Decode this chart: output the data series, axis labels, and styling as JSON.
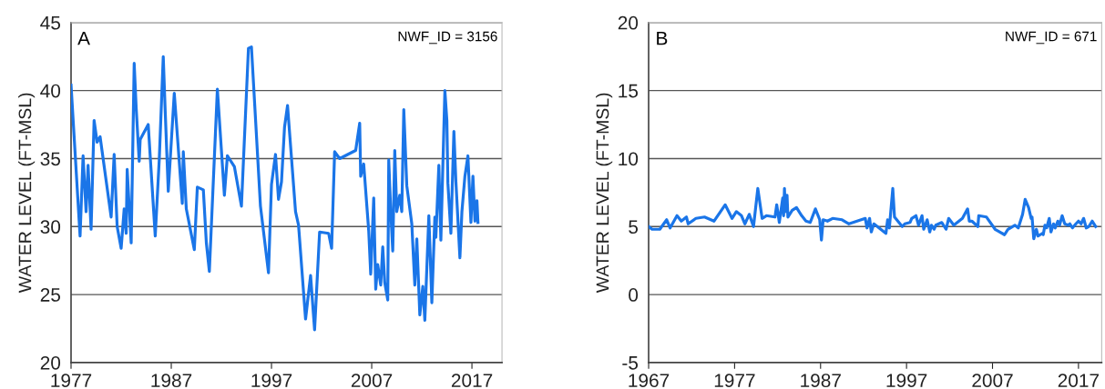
{
  "chart_data": [
    {
      "type": "line",
      "ylabel": "WATER LEVEL (FT-MSL)",
      "annotations": [
        "A",
        "NWF_ID = 3156"
      ],
      "xlim": [
        1977,
        2020
      ],
      "xticks": [
        1977,
        1987,
        1997,
        2007,
        2017
      ],
      "ylim": [
        20,
        45
      ],
      "yticks": [
        20,
        25,
        30,
        35,
        40,
        45
      ],
      "grid": "y",
      "series": [
        {
          "color": "#1a75e8",
          "x": [
            1977.0,
            1977.9,
            1978.2,
            1978.5,
            1978.7,
            1979.0,
            1979.3,
            1979.6,
            1979.9,
            1981.0,
            1981.3,
            1981.6,
            1982.0,
            1982.3,
            1982.5,
            1982.6,
            1983.0,
            1983.3,
            1983.5,
            1983.8,
            1983.9,
            1984.7,
            1985.4,
            1985.8,
            1986.2,
            1986.4,
            1986.7,
            1987.0,
            1987.3,
            1988.1,
            1988.2,
            1988.5,
            1989.3,
            1989.6,
            1990.2,
            1990.5,
            1990.8,
            1991.6,
            1992.3,
            1992.6,
            1993.3,
            1994.0,
            1994.7,
            1995.0,
            1995.9,
            1996.7,
            1997.0,
            1997.4,
            1997.7,
            1998.0,
            1998.3,
            1998.6,
            1999.4,
            1999.7,
            2000.4,
            2000.9,
            2001.3,
            2001.8,
            2002.7,
            2003.0,
            2003.3,
            2003.8,
            2005.4,
            2005.8,
            2005.9,
            2006.2,
            2006.7,
            2006.9,
            2007.2,
            2007.4,
            2007.6,
            2007.9,
            2008.1,
            2008.3,
            2008.6,
            2008.7,
            2008.9,
            2009.1,
            2009.3,
            2009.5,
            2009.8,
            2010.0,
            2010.2,
            2010.5,
            2011.0,
            2011.3,
            2011.5,
            2011.8,
            2012.1,
            2012.3,
            2012.7,
            2013.0,
            2013.3,
            2013.4,
            2013.7,
            2013.9,
            2014.3,
            2014.5,
            2014.6,
            2014.9,
            2015.2,
            2015.4,
            2015.8,
            2016.0,
            2016.3,
            2016.6,
            2016.9,
            2017.1,
            2017.3,
            2017.5,
            2017.6
          ],
          "values": [
            40.4,
            29.3,
            35.2,
            31.1,
            34.5,
            29.8,
            37.8,
            36.2,
            36.6,
            30.7,
            35.3,
            30.0,
            28.4,
            31.3,
            29.5,
            34.2,
            28.8,
            42.0,
            38.7,
            34.8,
            36.4,
            37.5,
            29.3,
            34.9,
            42.5,
            38.4,
            32.6,
            36.2,
            39.8,
            31.7,
            35.5,
            31.3,
            28.3,
            32.9,
            32.7,
            28.8,
            26.7,
            40.1,
            32.3,
            35.2,
            34.4,
            31.5,
            43.1,
            43.2,
            31.5,
            26.6,
            33.1,
            35.3,
            32.0,
            33.3,
            37.3,
            38.9,
            31.1,
            30.1,
            23.2,
            26.4,
            22.4,
            29.6,
            29.5,
            28.4,
            35.5,
            35.0,
            35.6,
            37.6,
            33.7,
            34.6,
            29.7,
            26.5,
            32.1,
            25.4,
            27.2,
            25.7,
            28.5,
            25.9,
            24.6,
            34.9,
            31.1,
            28.2,
            35.6,
            31.1,
            32.3,
            31.1,
            38.6,
            33.0,
            30.2,
            25.7,
            29.1,
            23.5,
            25.6,
            23.1,
            30.8,
            24.4,
            30.7,
            29.2,
            34.5,
            29.0,
            40.0,
            37.8,
            33.2,
            29.5,
            37.0,
            33.3,
            27.7,
            31.1,
            33.7,
            35.2,
            30.3,
            33.7,
            30.4,
            31.9,
            30.3
          ]
        }
      ]
    },
    {
      "type": "line",
      "ylabel": "WATER LEVEL (FT-MSL)",
      "annotations": [
        "B",
        "NWF_ID = 671"
      ],
      "xlim": [
        1967,
        2019.7
      ],
      "xticks": [
        1967,
        1977,
        1987,
        1997,
        2007,
        2017
      ],
      "ylim": [
        -5,
        20
      ],
      "yticks": [
        -5,
        0,
        5,
        10,
        15,
        20
      ],
      "grid": "y",
      "series": [
        {
          "color": "#1a75e8",
          "x": [
            1967.0,
            1967.4,
            1968.3,
            1969.1,
            1969.5,
            1970.3,
            1970.8,
            1971.4,
            1971.6,
            1972.5,
            1973.5,
            1974.6,
            1975.9,
            1976.7,
            1977.2,
            1977.8,
            1978.2,
            1978.7,
            1979.2,
            1979.7,
            1980.2,
            1980.7,
            1981.7,
            1981.9,
            1982.2,
            1982.6,
            1982.7,
            1982.8,
            1982.9,
            1983.1,
            1983.2,
            1983.7,
            1984.2,
            1984.8,
            1985.3,
            1985.8,
            1986.4,
            1986.9,
            1987.1,
            1987.3,
            1987.8,
            1988.4,
            1989.5,
            1990.3,
            1992.2,
            1992.4,
            1992.7,
            1992.9,
            1993.2,
            1994.6,
            1994.8,
            1995.0,
            1995.4,
            1995.6,
            1996.5,
            1996.8,
            1997.4,
            1997.6,
            1998.1,
            1998.4,
            1998.8,
            1999.0,
            1999.4,
            1999.7,
            1999.9,
            2000.2,
            2000.4,
            2001.1,
            2001.6,
            2001.9,
            2002.5,
            2003.5,
            2004.1,
            2004.3,
            2004.6,
            2005.3,
            2005.4,
            2006.3,
            2007.3,
            2008.4,
            2008.8,
            2009.6,
            2010.0,
            2010.5,
            2010.8,
            2011.2,
            2011.5,
            2011.6,
            2011.8,
            2012.1,
            2012.3,
            2012.8,
            2012.9,
            2013.1,
            2013.3,
            2013.6,
            2013.8,
            2014.1,
            2014.3,
            2014.6,
            2014.8,
            2015.1,
            2015.4,
            2015.8,
            2016.0,
            2016.3,
            2016.7,
            2017.0,
            2017.3,
            2017.6,
            2017.9,
            2018.2,
            2018.6,
            2019.0
          ],
          "values": [
            5.0,
            4.8,
            4.8,
            5.5,
            4.9,
            5.8,
            5.4,
            5.7,
            5.2,
            5.6,
            5.7,
            5.4,
            6.6,
            5.6,
            6.1,
            5.8,
            5.2,
            5.9,
            5.0,
            7.8,
            5.6,
            5.8,
            5.7,
            6.6,
            5.3,
            7.1,
            5.8,
            7.8,
            6.1,
            7.3,
            5.7,
            6.2,
            6.4,
            5.8,
            5.4,
            5.3,
            6.3,
            5.5,
            4.0,
            5.5,
            5.4,
            5.6,
            5.5,
            5.2,
            5.6,
            4.9,
            5.6,
            4.6,
            5.2,
            4.5,
            5.5,
            4.9,
            7.8,
            5.7,
            5.0,
            5.2,
            5.3,
            5.6,
            5.8,
            5.1,
            5.8,
            4.8,
            5.5,
            4.6,
            5.1,
            4.8,
            5.1,
            5.3,
            4.8,
            5.6,
            5.1,
            5.6,
            6.3,
            5.4,
            5.4,
            5.0,
            5.8,
            5.7,
            4.8,
            4.4,
            4.8,
            5.1,
            4.9,
            5.9,
            7.0,
            6.4,
            5.6,
            5.7,
            4.1,
            4.8,
            4.3,
            4.5,
            4.4,
            5.1,
            4.9,
            5.6,
            4.6,
            5.2,
            4.9,
            5.4,
            5.1,
            5.8,
            5.2,
            5.1,
            5.2,
            4.9,
            5.2,
            5.4,
            5.2,
            5.6,
            4.9,
            5.0,
            5.4,
            5.0
          ]
        }
      ]
    }
  ]
}
